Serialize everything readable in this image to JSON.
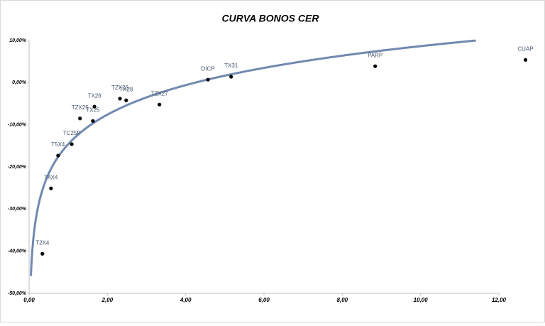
{
  "chart_data": {
    "type": "scatter",
    "title": "CURVA BONOS CER",
    "xlim": [
      0,
      12
    ],
    "ylim": [
      -50,
      10
    ],
    "xticks": [
      {
        "value": 0,
        "label": "0,00"
      },
      {
        "value": 2,
        "label": "2,00"
      },
      {
        "value": 4,
        "label": "4,00"
      },
      {
        "value": 6,
        "label": "6,00"
      },
      {
        "value": 8,
        "label": "8,00"
      },
      {
        "value": 10,
        "label": "10,00"
      },
      {
        "value": 12,
        "label": "12,00"
      }
    ],
    "yticks": [
      {
        "value": 10,
        "label": "10,00%"
      },
      {
        "value": 0,
        "label": "0,00%"
      },
      {
        "value": -10,
        "label": "-10,00%"
      },
      {
        "value": -20,
        "label": "-20,00%"
      },
      {
        "value": -30,
        "label": "-30,00%"
      },
      {
        "value": -40,
        "label": "-40,00%"
      },
      {
        "value": -50,
        "label": "-50,00%"
      }
    ],
    "series": [
      {
        "color": "#000000",
        "labels": [
          "T2X4",
          "T4X4",
          "T5X4",
          "TC25P",
          "TZX25",
          "TX25",
          "TX26",
          "TZX26",
          "TX28",
          "TZX27",
          "DICP",
          "TX31",
          "PARP",
          "CUAP"
        ],
        "x": [
          0.34,
          0.56,
          0.74,
          1.09,
          1.3,
          1.63,
          1.67,
          2.32,
          2.48,
          3.33,
          4.57,
          5.16,
          8.84,
          12.68
        ],
        "values": [
          -40.6,
          -25.1,
          -17.3,
          -14.6,
          -8.5,
          -9.1,
          -5.7,
          -3.8,
          -4.2,
          -5.2,
          0.7,
          1.4,
          3.9,
          5.4
        ]
      }
    ],
    "trendline": {
      "type": "log",
      "a": -14.6,
      "b": 10.1,
      "color": "#7189b0"
    }
  }
}
